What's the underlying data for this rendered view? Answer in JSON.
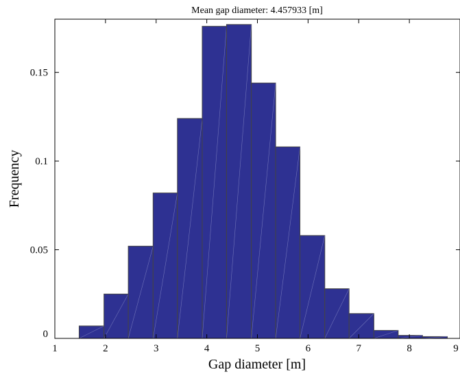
{
  "chart_data": {
    "type": "bar",
    "title": "Mean gap diameter: 4.457933 [m]",
    "xlabel": "Gap diameter [m]",
    "ylabel": "Frequency",
    "xlim": [
      1,
      9
    ],
    "ylim": [
      0,
      0.18
    ],
    "xticks": [
      "1",
      "2",
      "3",
      "4",
      "5",
      "6",
      "7",
      "8",
      "9"
    ],
    "yticks": [
      "0",
      "0.05",
      "0.1",
      "0.15"
    ],
    "grid": false,
    "bar_color": "#2e3192",
    "edge_color": "#444444",
    "bins": [
      {
        "x0": 1.48,
        "x1": 1.97,
        "value": 0.007
      },
      {
        "x0": 1.97,
        "x1": 2.45,
        "value": 0.025
      },
      {
        "x0": 2.45,
        "x1": 2.94,
        "value": 0.052
      },
      {
        "x0": 2.94,
        "x1": 3.42,
        "value": 0.082
      },
      {
        "x0": 3.42,
        "x1": 3.91,
        "value": 0.124
      },
      {
        "x0": 3.91,
        "x1": 4.39,
        "value": 0.176
      },
      {
        "x0": 4.39,
        "x1": 4.88,
        "value": 0.177
      },
      {
        "x0": 4.88,
        "x1": 5.36,
        "value": 0.144
      },
      {
        "x0": 5.36,
        "x1": 5.84,
        "value": 0.108
      },
      {
        "x0": 5.84,
        "x1": 6.33,
        "value": 0.058
      },
      {
        "x0": 6.33,
        "x1": 6.81,
        "value": 0.028
      },
      {
        "x0": 6.81,
        "x1": 7.3,
        "value": 0.014
      },
      {
        "x0": 7.3,
        "x1": 7.78,
        "value": 0.0045
      },
      {
        "x0": 7.78,
        "x1": 8.26,
        "value": 0.0017
      },
      {
        "x0": 8.26,
        "x1": 8.75,
        "value": 0.001
      }
    ]
  }
}
